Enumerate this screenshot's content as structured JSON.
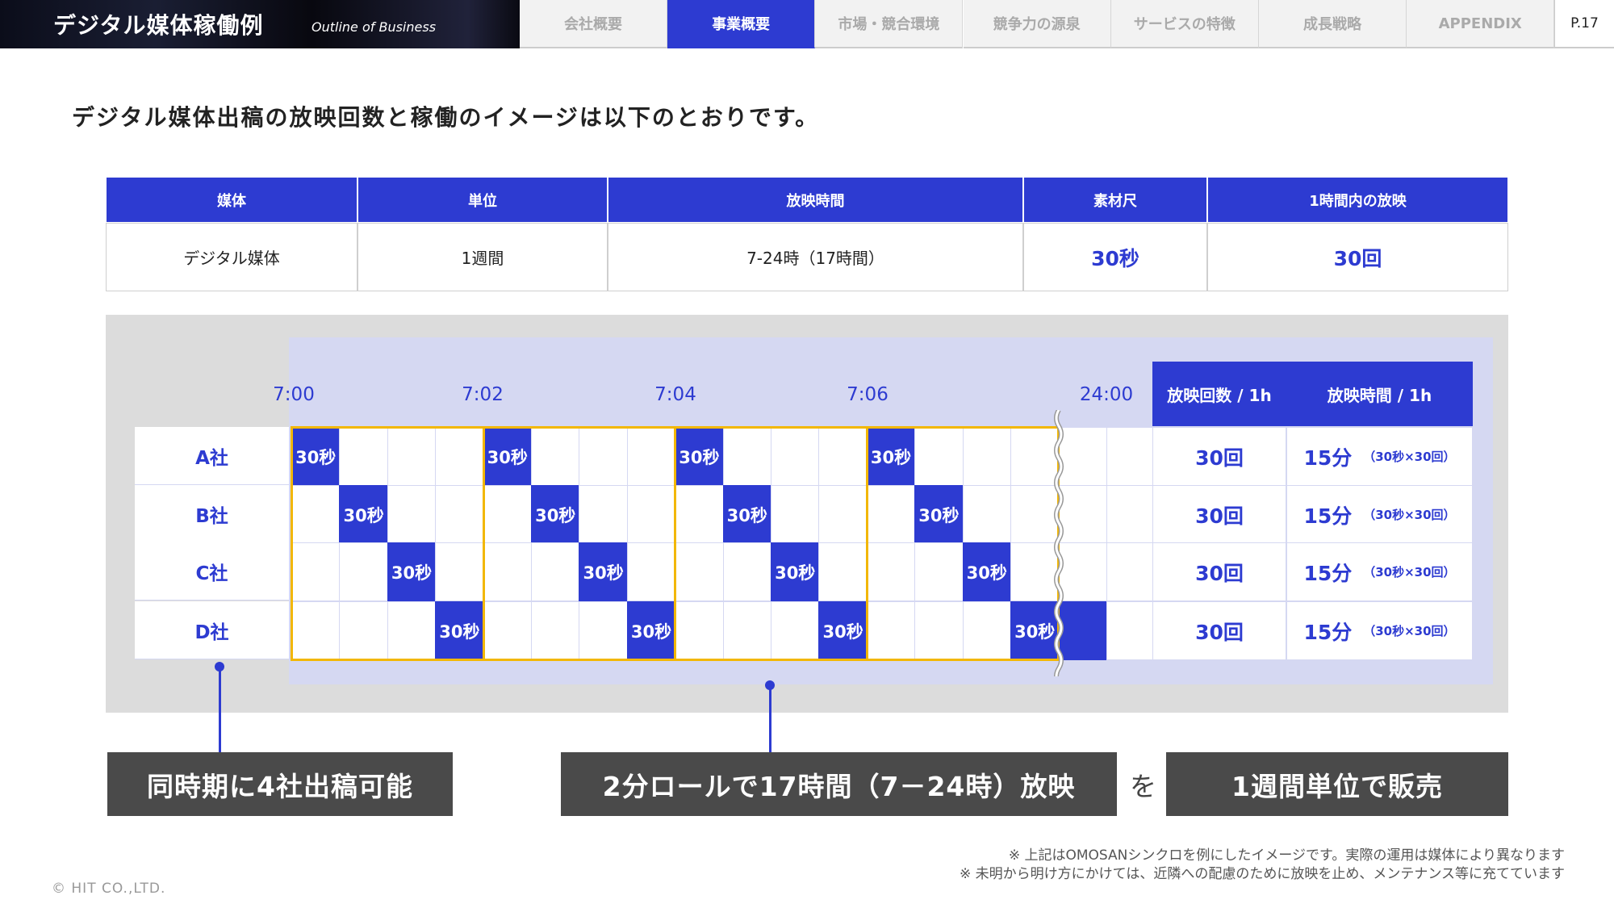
{
  "header": {
    "title": "デジタル媒体稼働例",
    "subtitle": "Outline of Business",
    "tabs": [
      {
        "label": "会社概要"
      },
      {
        "label": "事業概要",
        "active": true
      },
      {
        "label": "市場・競合環境"
      },
      {
        "label": "競争力の源泉"
      },
      {
        "label": "サービスの特徴"
      },
      {
        "label": "成長戦略"
      },
      {
        "label": "APPENDIX"
      }
    ],
    "page": "P.17"
  },
  "heading": "デジタル媒体出稿の放映回数と稼働のイメージは以下のとおりです。",
  "summary_table": {
    "headers": [
      "媒体",
      "単位",
      "放映時間",
      "素材尺",
      "1時間内の放映"
    ],
    "row": [
      "デジタル媒体",
      "1週間",
      "7-24時（17時間）",
      "30秒",
      "30回"
    ]
  },
  "schedule": {
    "times": [
      "7:00",
      "7:02",
      "7:04",
      "7:06",
      "24:00"
    ],
    "slot_label": "30秒",
    "companies": [
      {
        "name": "A社",
        "count": "30回",
        "time": "15分",
        "detail": "（30秒×30回）"
      },
      {
        "name": "B社",
        "count": "30回",
        "time": "15分",
        "detail": "（30秒×30回）"
      },
      {
        "name": "C社",
        "count": "30回",
        "time": "15分",
        "detail": "（30秒×30回）"
      },
      {
        "name": "D社",
        "count": "30回",
        "time": "15分",
        "detail": "（30秒×30回）"
      }
    ],
    "right_headers": [
      "放映回数 / 1h",
      "放映時間 / 1h"
    ]
  },
  "callouts": {
    "left": "同時期に4社出稿可能",
    "middle": "2分ロールで17時間（7－24時）放映",
    "connector": "を",
    "right": "1週間単位で販売"
  },
  "notes": [
    "※ 上記はOMOSANシンクロを例にしたイメージです。実際の運用は媒体により異なります",
    "※ 未明から明け方にかけては、近隣への配慮のために放映を止め、メンテナンス等に充てています"
  ],
  "copyright": "© HIT CO.,LTD.",
  "colors": {
    "accent": "#2d3bd1",
    "highlight": "#f2b705",
    "panel": "#dcdcdc",
    "lavender": "#d5d8f2",
    "callout": "#4a4a4a"
  }
}
